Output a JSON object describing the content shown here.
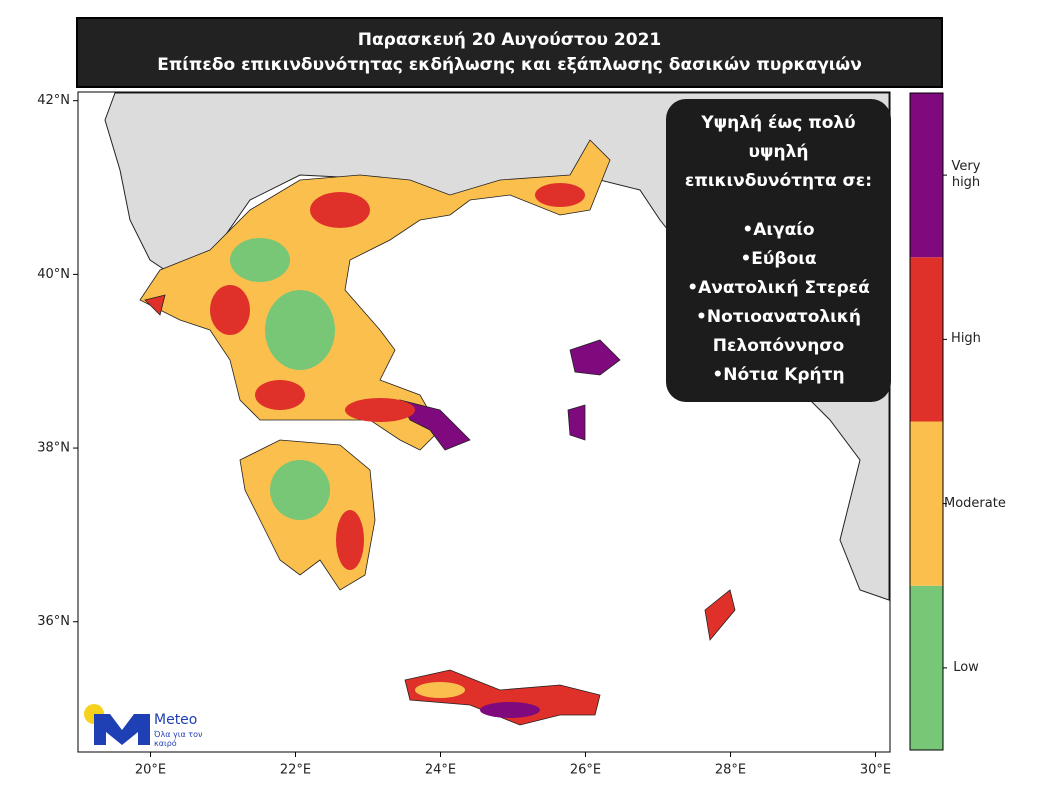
{
  "title": {
    "line1": "Παρασκευή 20 Αυγούστου 2021",
    "line2": "Επίπεδο επικινδυνότητας εκδήλωσης και εξάπλωσης δασικών πυρκαγιών"
  },
  "map": {
    "xlim": [
      19,
      30.2
    ],
    "ylim": [
      34.5,
      42.1
    ],
    "xticks": [
      {
        "value": 20,
        "label": "20°E"
      },
      {
        "value": 22,
        "label": "22°E"
      },
      {
        "value": 24,
        "label": "24°E"
      },
      {
        "value": 26,
        "label": "26°E"
      },
      {
        "value": 28,
        "label": "28°E"
      },
      {
        "value": 30,
        "label": "30°E"
      }
    ],
    "yticks": [
      {
        "value": 36,
        "label": "36°N"
      },
      {
        "value": 38,
        "label": "38°N"
      },
      {
        "value": 40,
        "label": "40°N"
      },
      {
        "value": 42,
        "label": "42°N"
      }
    ]
  },
  "info_box": {
    "heading": "Υψηλή έως πολύ υψηλή επικινδυνότητα σε:",
    "items": [
      "•Αιγαίο",
      "•Εύβοια",
      "•Ανατολική Στερεά",
      "•Νοτιοανατολική Πελοπόννησο",
      "•Νότια Κρήτη"
    ]
  },
  "legend": {
    "levels": [
      {
        "label": "Low",
        "color": "#77c777"
      },
      {
        "label": "Moderate",
        "color": "#fbbf4d"
      },
      {
        "label": "High",
        "color": "#e0302a"
      },
      {
        "label": "Very high",
        "color": "#7e0a7e"
      }
    ]
  },
  "logo": {
    "name": "Meteo",
    "tagline": "Όλα για τον καιρό"
  }
}
